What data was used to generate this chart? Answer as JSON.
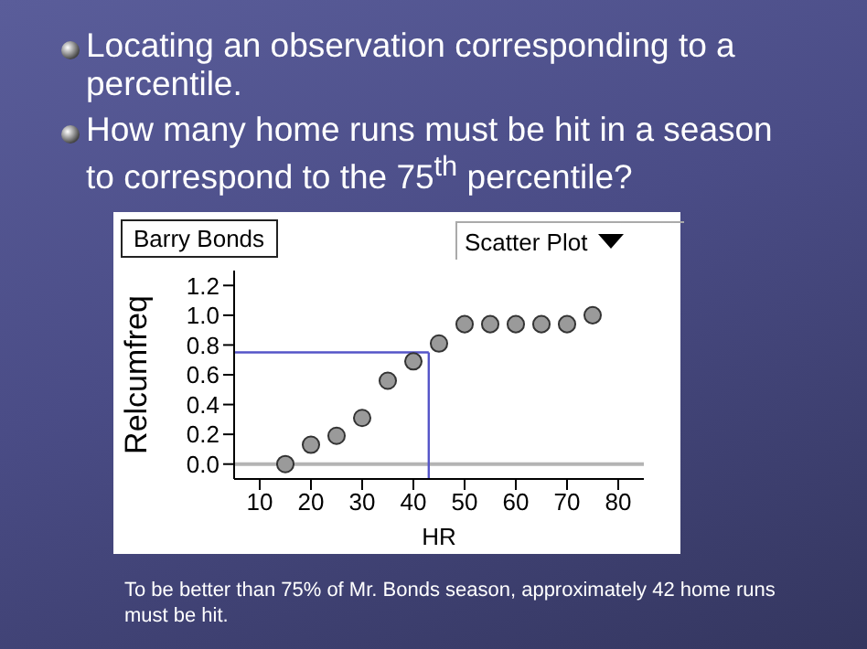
{
  "chart_data": {
    "type": "scatter",
    "title": "Locating an observation corresponding to a percentile.",
    "subtitle": "How many home runs must be hit in a season to correspond to the 75$^{th}$ percentile?",
    "xlabel": "HR",
    "ylabel": "Relcumfreq",
    "annotations": [
      "Barry Bonds",
      "Scatter Plot",
      "To be better than 75% of Mr. Bonds season, approximately 42 home runs must be hit."
    ],
    "x": [
      15,
      20,
      25,
      30,
      35,
      40,
      45,
      50,
      55,
      60,
      65,
      70,
      75
    ],
    "series": [
      {
        "color": "#9a9a9a",
        "values": [
          0.0,
          0.13,
          0.19,
          0.31,
          0.56,
          0.69,
          0.81,
          0.94,
          0.94,
          0.94,
          0.94,
          0.94,
          1.0
        ]
      }
    ],
    "marker": "circle",
    "xlim": [
      5,
      85
    ],
    "xticks": [
      10,
      20,
      30,
      40,
      50,
      60,
      70,
      80
    ],
    "ylim": [
      -0.1,
      1.3
    ],
    "yticks": [
      {
        "value": 0,
        "label": "0.0"
      },
      {
        "value": 0.2,
        "label": "0.2"
      },
      {
        "value": 0.4,
        "label": "0.4"
      },
      {
        "value": 0.6,
        "label": "0.6"
      },
      {
        "value": 0.8,
        "label": "0.8"
      },
      {
        "value": 1,
        "label": "1.0"
      },
      {
        "value": 1.2,
        "label": "1.2"
      }
    ],
    "ref_lines": [
      {
        "axis": "y",
        "value": 0,
        "color": "#b4b4b4"
      },
      {
        "axis": "y",
        "value": 0.75,
        "color": "#5555c8"
      },
      {
        "axis": "x",
        "value": 43,
        "color": "#5555c8"
      }
    ]
  }
}
